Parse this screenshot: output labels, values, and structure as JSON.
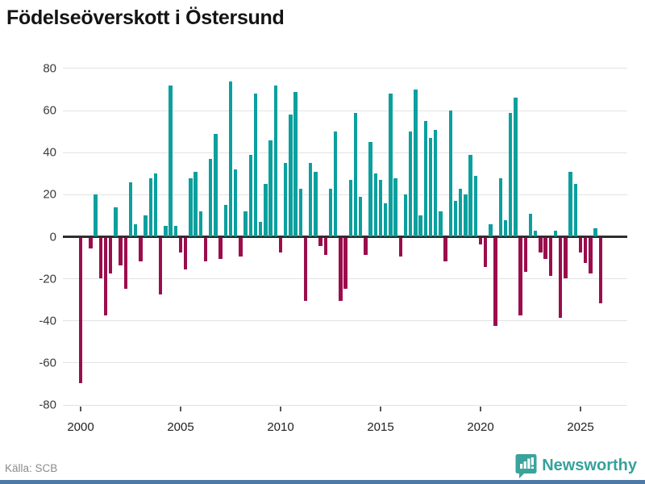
{
  "header": {
    "title": "Födelseöverskott i Östersund"
  },
  "footer": {
    "source": "Källa: SCB",
    "brand": "Newsworthy"
  },
  "chart_data": {
    "type": "bar",
    "title": "Födelseöverskott i Östersund",
    "xlabel": "",
    "ylabel": "",
    "frequency": "quarterly",
    "start_year": 2000,
    "start_quarter": 1,
    "ylim": [
      -80,
      80
    ],
    "grid": true,
    "y_ticks": [
      80,
      60,
      40,
      20,
      0,
      -20,
      -40,
      -60,
      -80
    ],
    "x_tick_years": [
      2000,
      2005,
      2010,
      2015,
      2020,
      2025
    ],
    "colors": {
      "positive": "#0aa09e",
      "negative": "#9b0d4d"
    },
    "values": [
      -69,
      0,
      -5,
      20,
      -19,
      -37,
      -17,
      14,
      -13,
      -24,
      26,
      6,
      -11,
      10,
      28,
      30,
      -27,
      5,
      72,
      5,
      -7,
      -15,
      28,
      31,
      12,
      -11,
      37,
      49,
      -10,
      15,
      74,
      32,
      -9,
      12,
      39,
      68,
      7,
      25,
      46,
      72,
      -7,
      35,
      58,
      69,
      23,
      -30,
      35,
      31,
      -4,
      -8,
      23,
      50,
      -30,
      -24,
      27,
      59,
      19,
      -8,
      45,
      30,
      27,
      16,
      68,
      28,
      -9,
      20,
      50,
      70,
      10,
      55,
      47,
      51,
      12,
      -11,
      60,
      17,
      23,
      20,
      39,
      29,
      -3,
      -14,
      6,
      -42,
      28,
      8,
      59,
      66,
      -37,
      -16,
      11,
      3,
      -7,
      -10,
      -18,
      3,
      -38,
      -19,
      31,
      25,
      -7,
      -12,
      -17,
      4,
      -31
    ]
  }
}
